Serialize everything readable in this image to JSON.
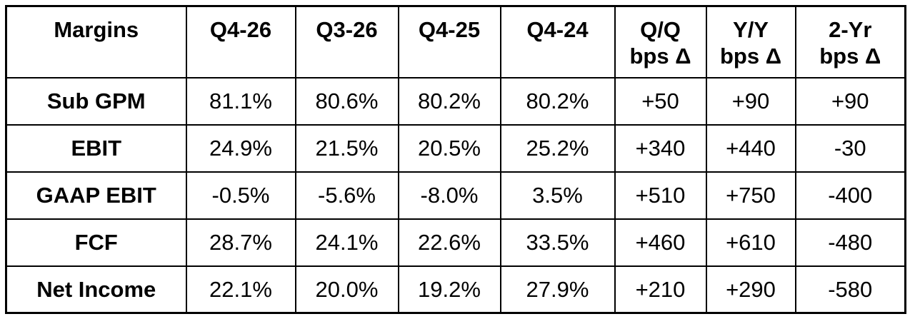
{
  "colors": {
    "border": "#000000",
    "text": "#000000",
    "background": "#ffffff"
  },
  "chart_data": {
    "type": "table",
    "title": "Margins",
    "columns": [
      {
        "label": "Margins",
        "sublabel": ""
      },
      {
        "label": "Q4-26",
        "sublabel": ""
      },
      {
        "label": "Q3-26",
        "sublabel": ""
      },
      {
        "label": "Q4-25",
        "sublabel": ""
      },
      {
        "label": "Q4-24",
        "sublabel": ""
      },
      {
        "label": "Q/Q",
        "sublabel": "bps Δ"
      },
      {
        "label": "Y/Y",
        "sublabel": "bps Δ"
      },
      {
        "label": "2-Yr",
        "sublabel": "bps Δ"
      }
    ],
    "rows": [
      {
        "label": "Sub GPM",
        "values": [
          "81.1%",
          "80.6%",
          "80.2%",
          "80.2%",
          "+50",
          "+90",
          "+90"
        ]
      },
      {
        "label": "EBIT",
        "values": [
          "24.9%",
          "21.5%",
          "20.5%",
          "25.2%",
          "+340",
          "+440",
          "-30"
        ]
      },
      {
        "label": "GAAP EBIT",
        "values": [
          "-0.5%",
          "-5.6%",
          "-8.0%",
          "3.5%",
          "+510",
          "+750",
          "-400"
        ]
      },
      {
        "label": "FCF",
        "values": [
          "28.7%",
          "24.1%",
          "22.6%",
          "33.5%",
          "+460",
          "+610",
          "-480"
        ]
      },
      {
        "label": "Net Income",
        "values": [
          "22.1%",
          "20.0%",
          "19.2%",
          "27.9%",
          "+210",
          "+290",
          "-580"
        ]
      }
    ]
  }
}
